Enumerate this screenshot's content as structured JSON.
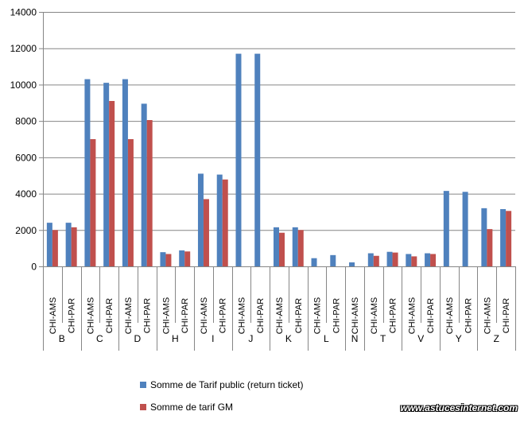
{
  "chart_data": {
    "type": "bar",
    "ylim": [
      0,
      14000
    ],
    "yticks": [
      0,
      2000,
      4000,
      6000,
      8000,
      10000,
      12000,
      14000
    ],
    "grid": true,
    "legend_position": "bottom",
    "groups": [
      {
        "label": "B",
        "categories": [
          "CHI-AMS",
          "CHI-PAR"
        ]
      },
      {
        "label": "C",
        "categories": [
          "CHI-AMS",
          "CHI-PAR"
        ]
      },
      {
        "label": "D",
        "categories": [
          "CHI-AMS",
          "CHI-PAR"
        ]
      },
      {
        "label": "H",
        "categories": [
          "CHI-AMS",
          "CHI-PAR"
        ]
      },
      {
        "label": "I",
        "categories": [
          "CHI-AMS",
          "CHI-PAR"
        ]
      },
      {
        "label": "J",
        "categories": [
          "CHI-AMS",
          "CHI-PAR"
        ]
      },
      {
        "label": "K",
        "categories": [
          "CHI-AMS",
          "CHI-PAR"
        ]
      },
      {
        "label": "L",
        "categories": [
          "CHI-AMS",
          "CHI-PAR"
        ]
      },
      {
        "label": "N",
        "categories": [
          "CHI-AMS"
        ]
      },
      {
        "label": "T",
        "categories": [
          "CHI-AMS",
          "CHI-PAR"
        ]
      },
      {
        "label": "V",
        "categories": [
          "CHI-AMS",
          "CHI-PAR"
        ]
      },
      {
        "label": "Y",
        "categories": [
          "CHI-AMS",
          "CHI-PAR"
        ]
      },
      {
        "label": "Z",
        "categories": [
          "CHI-AMS",
          "CHI-PAR"
        ]
      }
    ],
    "series": [
      {
        "name": "Somme de Tarif public (return ticket)",
        "color": "#4f81bd",
        "values": [
          2400,
          2400,
          10300,
          10100,
          10300,
          8950,
          780,
          880,
          5100,
          5050,
          11700,
          11700,
          2150,
          2150,
          450,
          620,
          220,
          720,
          800,
          680,
          720,
          4150,
          4100,
          3200,
          3150
        ]
      },
      {
        "name": "Somme de tarif GM",
        "color": "#c0504d",
        "values": [
          2000,
          2150,
          7000,
          9100,
          7000,
          8050,
          680,
          820,
          3700,
          4780,
          0,
          0,
          1850,
          2000,
          0,
          0,
          0,
          580,
          760,
          550,
          680,
          0,
          0,
          2050,
          3050
        ]
      }
    ]
  },
  "watermark": "www.astucesinternet.com"
}
